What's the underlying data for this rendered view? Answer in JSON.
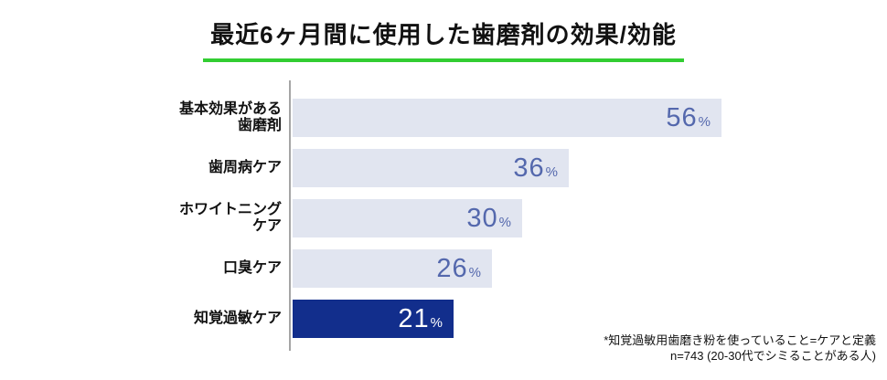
{
  "title": "最近6ヶ月間に使用した歯磨剤の効果/効能",
  "footnote": {
    "line1": "*知覚過敏用歯磨き粉を使っていること=ケアと定義",
    "line2": "n=743 (20-30代でシミることがある人)"
  },
  "colors": {
    "title_underline": "#32CD32",
    "bar_default": "#E1E5F0",
    "bar_highlight": "#122E8C",
    "value_text": "#5468AD",
    "value_text_highlight": "#FFFFFF",
    "axis_line": "#A5A5A5"
  },
  "chart_data": {
    "type": "bar",
    "orientation": "horizontal",
    "title": "最近6ヶ月間に使用した歯磨剤の効果/効能",
    "categories": [
      "基本効果がある歯磨剤",
      "歯周病ケア",
      "ホワイトニングケア",
      "口臭ケア",
      "知覚過敏ケア"
    ],
    "categories_display": [
      [
        "基本効果がある",
        "歯磨剤"
      ],
      [
        "歯周病ケア"
      ],
      [
        "ホワイトニング",
        "ケア"
      ],
      [
        "口臭ケア"
      ],
      [
        "知覚過敏ケア"
      ]
    ],
    "values": [
      56,
      36,
      30,
      26,
      21
    ],
    "unit": "%",
    "highlight_index": 4,
    "highlight_category": "知覚過敏ケア",
    "xlim": [
      0,
      60
    ],
    "value_labels_shown": true,
    "legend": false,
    "grid": false
  }
}
